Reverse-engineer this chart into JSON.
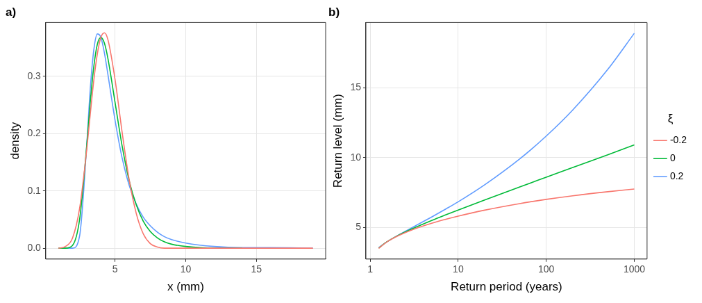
{
  "chart_data": [
    {
      "type": "line",
      "title": "a)",
      "xlabel": "x (mm)",
      "ylabel": "density",
      "x": [
        1,
        1.5,
        2,
        2.5,
        3,
        3.25,
        3.5,
        3.75,
        4,
        4.25,
        4.5,
        5,
        5.5,
        6,
        6.5,
        7,
        7.5,
        8,
        8.5,
        9,
        10,
        12,
        14,
        16,
        19
      ],
      "series": [
        {
          "color": "#f8766d",
          "values": [
            0,
            0.003,
            0.018,
            0.07,
            0.172,
            0.234,
            0.293,
            0.339,
            0.368,
            0.376,
            0.364,
            0.295,
            0.203,
            0.12,
            0.061,
            0.025,
            0.008,
            0.002,
            0,
            0,
            0,
            0,
            0,
            0,
            0
          ]
        },
        {
          "color": "#00ba38",
          "values": [
            0,
            0,
            0.005,
            0.051,
            0.179,
            0.255,
            0.317,
            0.356,
            0.368,
            0.358,
            0.331,
            0.255,
            0.179,
            0.118,
            0.076,
            0.047,
            0.029,
            0.018,
            0.011,
            0.007,
            0.003,
            0,
            0,
            null,
            null
          ]
        },
        {
          "color": "#619cff",
          "values": [
            0,
            0,
            0,
            0.022,
            0.18,
            0.278,
            0.346,
            0.374,
            0.368,
            0.341,
            0.303,
            0.224,
            0.158,
            0.11,
            0.077,
            0.054,
            0.039,
            0.028,
            0.02,
            0.015,
            0.009,
            0.003,
            0.001,
            0.001,
            0
          ]
        }
      ],
      "xlim": [
        0.1,
        19.9
      ],
      "ylim": [
        -0.019,
        0.394
      ],
      "xticks": [
        5,
        10,
        15
      ],
      "yticks": [
        {
          "value": 0,
          "label": "0.0"
        },
        {
          "value": 0.1,
          "label": "0.1"
        },
        {
          "value": 0.2,
          "label": "0.2"
        },
        {
          "value": 0.3,
          "label": "0.3"
        }
      ],
      "grid": true,
      "legend": false
    },
    {
      "type": "line",
      "title": "b)",
      "xlabel": "Return period (years)",
      "ylabel": "Return level (mm)",
      "legend_title": "ξ",
      "x": [
        1.25,
        1.5,
        2,
        3,
        5,
        7,
        10,
        20,
        50,
        100,
        200,
        500,
        1000
      ],
      "series": [
        {
          "name": "-0.2",
          "color": "#f8766d",
          "values": [
            3.5,
            3.9,
            4.35,
            4.83,
            5.3,
            5.56,
            5.81,
            6.24,
            6.71,
            7.01,
            7.27,
            7.56,
            7.75
          ]
        },
        {
          "name": "0",
          "color": "#00ba38",
          "values": [
            3.52,
            3.91,
            4.37,
            4.9,
            5.5,
            5.87,
            6.25,
            6.97,
            7.9,
            8.6,
            9.3,
            10.21,
            10.91
          ]
        },
        {
          "name": "0.2",
          "color": "#619cff",
          "values": [
            3.55,
            3.91,
            4.38,
            4.99,
            5.75,
            6.27,
            6.84,
            8.06,
            9.91,
            11.55,
            13.42,
            16.33,
            18.92
          ]
        }
      ],
      "log": "x",
      "xlim": [
        0.895,
        1396
      ],
      "ylim": [
        2.73,
        19.69
      ],
      "xticks": [
        1,
        10,
        100,
        1000
      ],
      "yticks": [
        5,
        10,
        15
      ],
      "grid": true,
      "legend": "right"
    }
  ]
}
